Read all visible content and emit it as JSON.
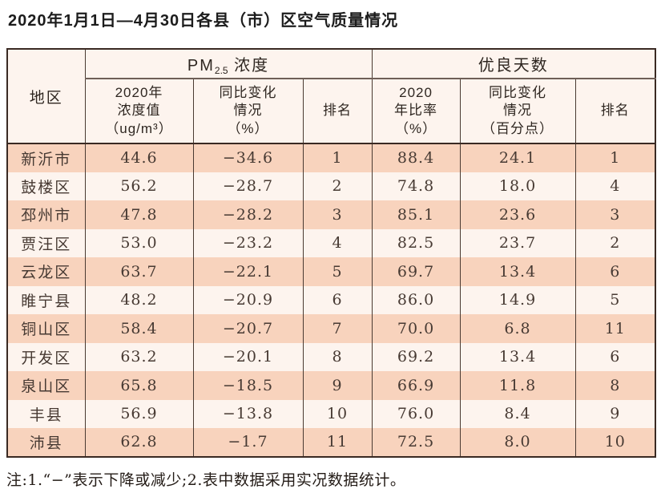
{
  "title": "2020年1月1日—4月30日各县（市）区空气质量情况",
  "colors": {
    "row_peach": "#f8d3bd",
    "row_cream": "#fdf4ee",
    "border_dark": "#3a2a23",
    "text_dark": "#473a33"
  },
  "table": {
    "region_header": "地区",
    "group1": {
      "main": "PM",
      "sub": "2.5",
      "rest": " 浓度"
    },
    "group2": "优良天数",
    "subheaders": [
      [
        "2020年",
        "浓度值",
        "（ug/m³）"
      ],
      [
        "同比变化",
        "情况",
        "（%）"
      ],
      [
        "排名"
      ],
      [
        "2020",
        "年比率",
        "（%）"
      ],
      [
        "同比变化",
        "情况",
        "（百分点）"
      ],
      [
        "排名"
      ]
    ],
    "rows": [
      [
        "新沂市",
        "44.6",
        "−34.6",
        "1",
        "88.4",
        "24.1",
        "1"
      ],
      [
        "鼓楼区",
        "56.2",
        "−28.7",
        "2",
        "74.8",
        "18.0",
        "4"
      ],
      [
        "邳州市",
        "47.8",
        "−28.2",
        "3",
        "85.1",
        "23.6",
        "3"
      ],
      [
        "贾汪区",
        "53.0",
        "−23.2",
        "4",
        "82.5",
        "23.7",
        "2"
      ],
      [
        "云龙区",
        "63.7",
        "−22.1",
        "5",
        "69.7",
        "13.4",
        "6"
      ],
      [
        "睢宁县",
        "48.2",
        "−20.9",
        "6",
        "86.0",
        "14.9",
        "5"
      ],
      [
        "铜山区",
        "58.4",
        "−20.7",
        "7",
        "70.0",
        "6.8",
        "11"
      ],
      [
        "开发区",
        "63.2",
        "−20.1",
        "8",
        "69.2",
        "13.4",
        "6"
      ],
      [
        "泉山区",
        "65.8",
        "−18.5",
        "9",
        "66.9",
        "11.8",
        "8"
      ],
      [
        "丰县",
        "56.9",
        "−13.8",
        "10",
        "76.0",
        "8.4",
        "9"
      ],
      [
        "沛县",
        "62.8",
        "−1.7",
        "11",
        "72.5",
        "8.0",
        "10"
      ]
    ]
  },
  "note": "注:1.“−”表示下降或减少;2.表中数据采用实况数据统计。"
}
